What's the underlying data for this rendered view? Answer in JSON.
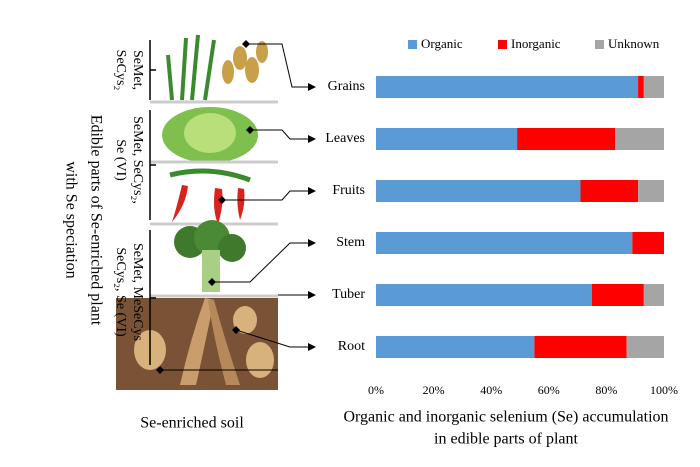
{
  "chart_data": {
    "type": "stacked-barh",
    "title": [
      "Organic and inorganic selenium (Se) accumulation",
      "in edible parts of plant"
    ],
    "categories": [
      "Grains",
      "Leaves",
      "Fruits",
      "Stem",
      "Tuber",
      "Root"
    ],
    "series": [
      {
        "name": "Organic",
        "color": "#5b9bd5",
        "values": [
          91,
          49,
          71,
          89,
          75,
          55
        ]
      },
      {
        "name": "Inorganic",
        "color": "#ff0000",
        "values": [
          2,
          34,
          20,
          11,
          18,
          32
        ]
      },
      {
        "name": "Unknown",
        "color": "#a5a5a5",
        "values": [
          7,
          17,
          9,
          0,
          7,
          13
        ]
      }
    ],
    "xlim": [
      0,
      100
    ],
    "xticks": [
      {
        "value": 0,
        "label": "0%"
      },
      {
        "value": 20,
        "label": "20%"
      },
      {
        "value": 40,
        "label": "40%"
      },
      {
        "value": 60,
        "label": "60%"
      },
      {
        "value": 80,
        "label": "80%"
      },
      {
        "value": 100,
        "label": "100%"
      }
    ],
    "legend": "top"
  },
  "illustration": {
    "side_title": [
      "Edible parts of Se-enriched plant",
      "with Se speciation"
    ],
    "species": [
      [
        "SeMet,",
        "SeCys₂"
      ],
      [
        "SeMet, SeCys₂,",
        "Se (VI)"
      ],
      [
        "SeMet, MeSeCys",
        "SeCys₂, Se (VI)"
      ]
    ],
    "soil": "Se-enriched soil"
  }
}
